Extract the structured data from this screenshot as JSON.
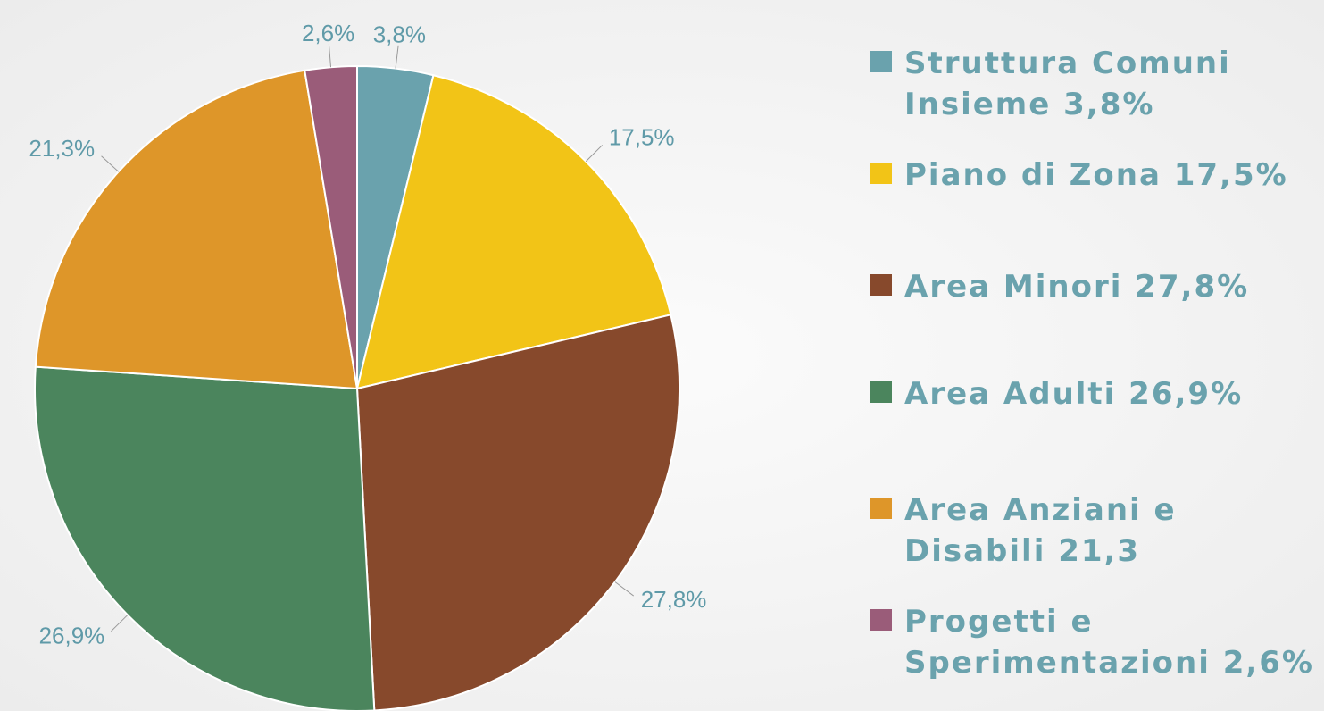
{
  "chart_data": {
    "type": "pie",
    "categories": [
      "Struttura Comuni Insieme 3,8%",
      "Piano di Zona 17,5%",
      "Area Minori 27,8%",
      "Area Adulti 26,9%",
      "Area Anziani e Disabili 21,3",
      "Progetti e Sperimentazioni 2,6%"
    ],
    "values": [
      3.8,
      17.5,
      27.8,
      26.9,
      21.3,
      2.6
    ],
    "value_labels": [
      "3,8%",
      "17,5%",
      "27,8%",
      "26,9%",
      "21,3%",
      "2,6%"
    ],
    "colors": [
      "#6aa2ad",
      "#f2c417",
      "#87492c",
      "#4b855d",
      "#de9629",
      "#9a5c79"
    ],
    "legend": "right"
  }
}
